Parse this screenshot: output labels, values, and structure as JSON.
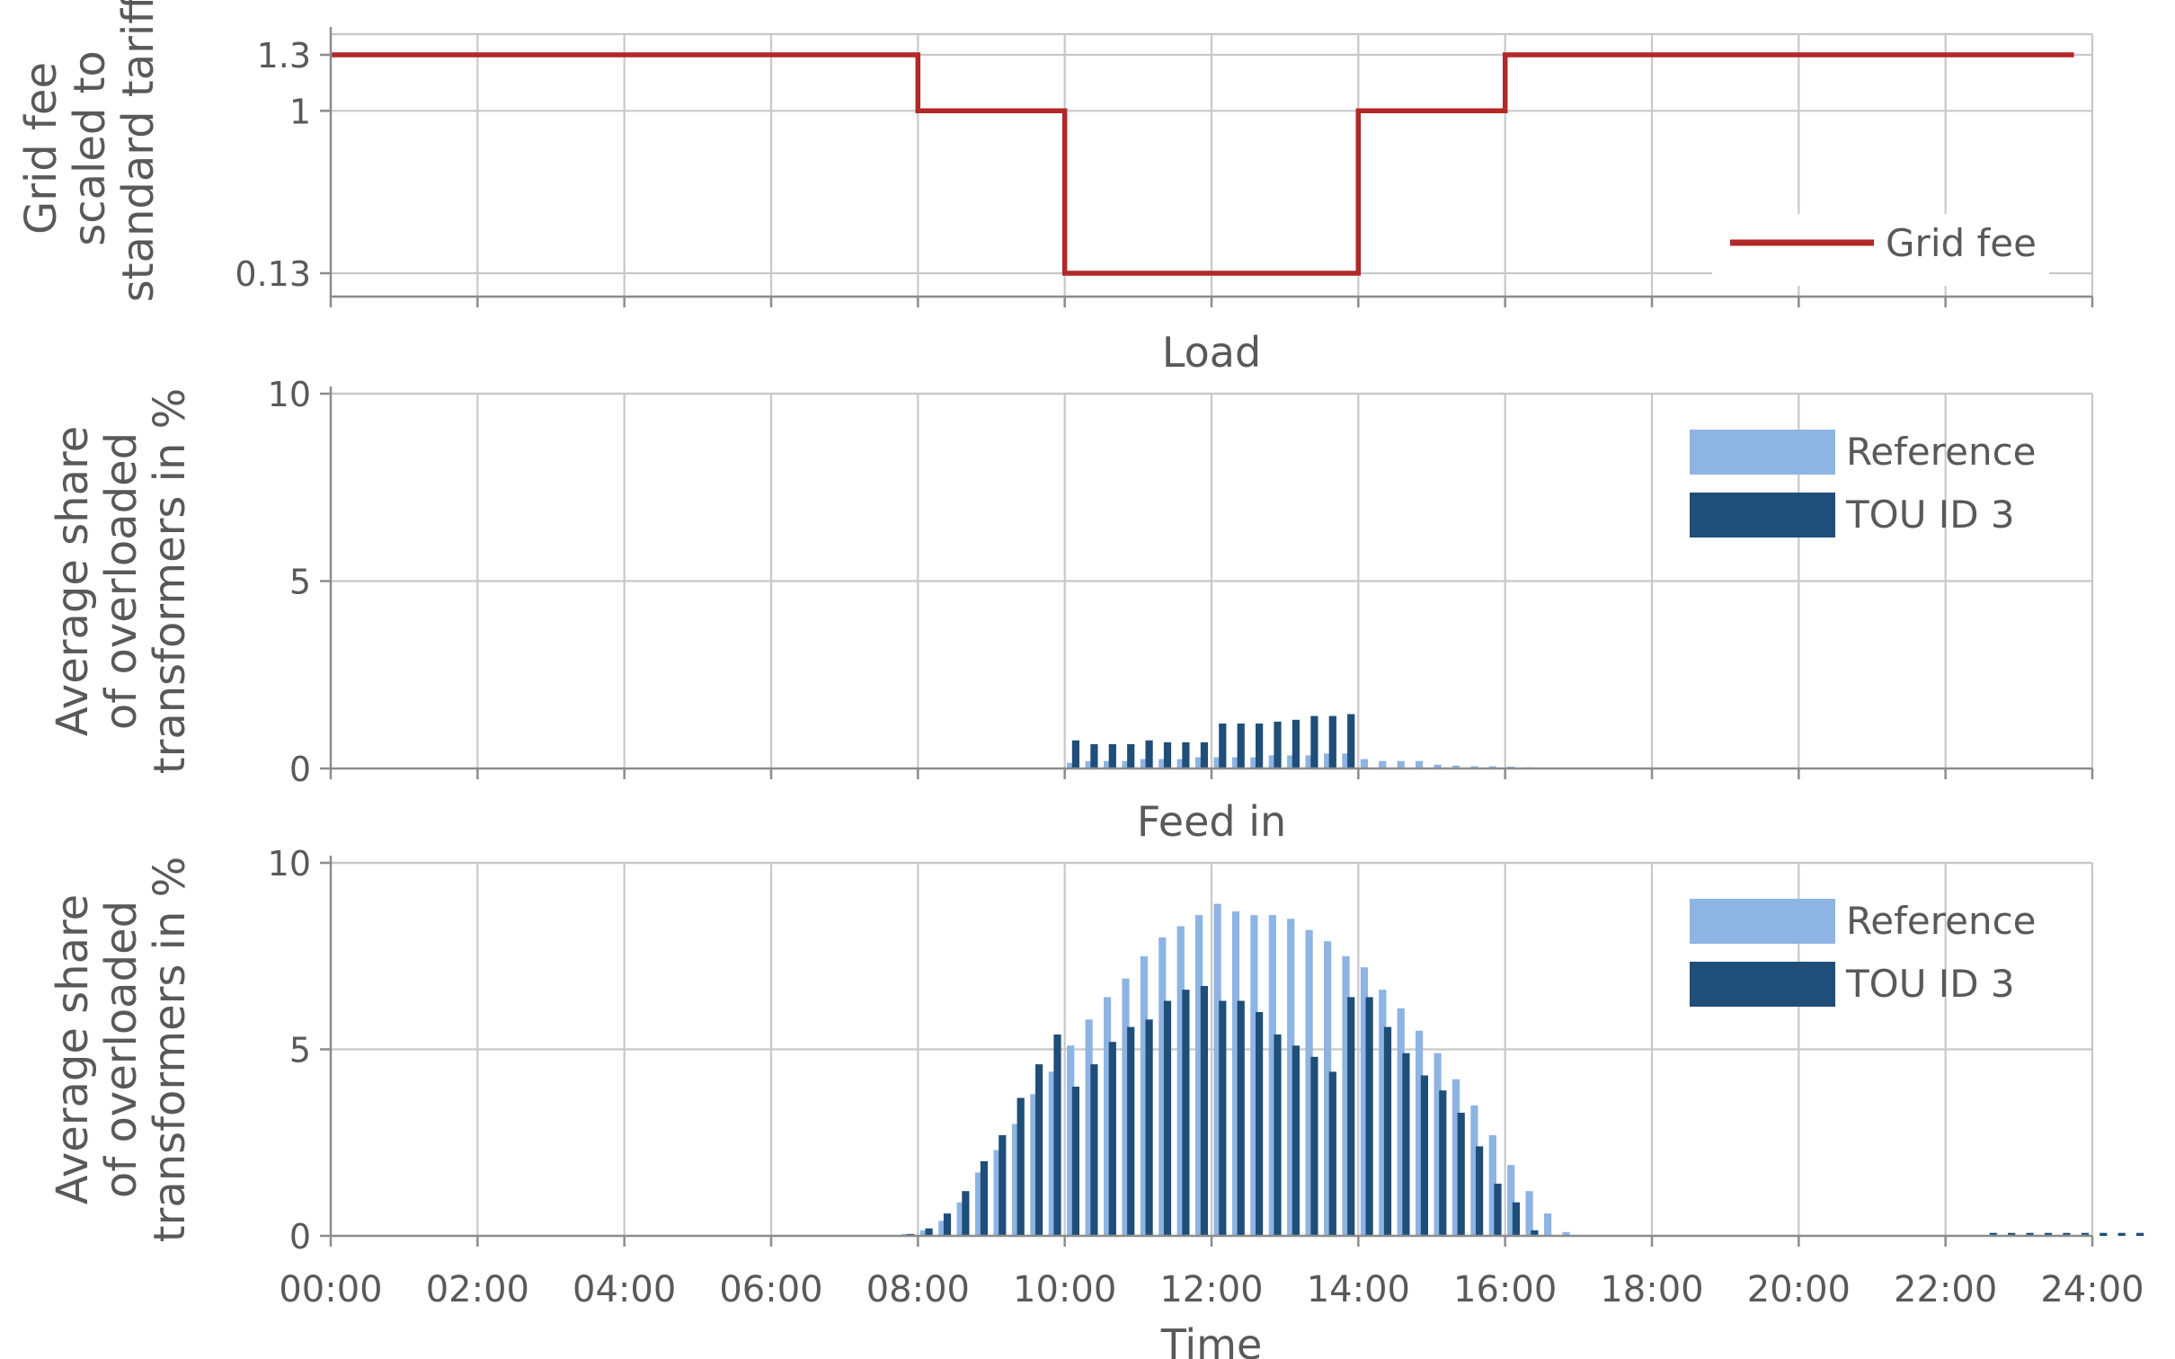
{
  "chart_data": [
    {
      "type": "line",
      "title": "",
      "ylabel": [
        "Grid fee",
        "scaled to",
        "standard tariff"
      ],
      "xlim": [
        0,
        24
      ],
      "ylim": [
        0,
        1.5
      ],
      "yticks": [
        0.13,
        1,
        1.3
      ],
      "ytick_labels": [
        "0.13",
        "1",
        "1.3"
      ],
      "grid": true,
      "legend_position": "bottom-right",
      "series": [
        {
          "name": "Grid fee",
          "color": "#b22727",
          "step": true,
          "points": [
            [
              0,
              1.3
            ],
            [
              8,
              1.3
            ],
            [
              8,
              1
            ],
            [
              10,
              1
            ],
            [
              10,
              0.13
            ],
            [
              14,
              0.13
            ],
            [
              14,
              1
            ],
            [
              16,
              1
            ],
            [
              16,
              1.3
            ],
            [
              23.75,
              1.3
            ]
          ]
        }
      ]
    },
    {
      "type": "bar",
      "title": "Load",
      "ylabel": [
        "Average share",
        "of overloaded",
        "transformers in %"
      ],
      "xlim": [
        0,
        24
      ],
      "ylim": [
        0,
        10
      ],
      "yticks": [
        0,
        5,
        10
      ],
      "ytick_labels": [
        "0",
        "5",
        "10"
      ],
      "grid": true,
      "legend_position": "top-right",
      "bin_hours": 0.25,
      "series": [
        {
          "name": "Reference",
          "color": "#8db4e2",
          "start_hour": 10,
          "values": [
            0.15,
            0.2,
            0.2,
            0.2,
            0.25,
            0.25,
            0.25,
            0.3,
            0.3,
            0.3,
            0.3,
            0.35,
            0.35,
            0.35,
            0.4,
            0.4,
            0.25,
            0.2,
            0.2,
            0.2,
            0.1,
            0.08,
            0.06,
            0.06,
            0.05,
            0.03,
            0.02,
            0.02,
            0.02,
            0.02,
            0,
            0,
            0,
            0,
            0,
            0,
            0,
            0,
            0,
            0,
            0,
            0,
            0,
            0,
            0,
            0,
            0,
            0,
            0,
            0,
            0,
            0,
            0,
            0,
            0,
            0
          ]
        },
        {
          "name": "TOU ID 3",
          "color": "#1f4e79",
          "start_hour": 10,
          "values": [
            0.75,
            0.65,
            0.65,
            0.65,
            0.75,
            0.7,
            0.7,
            0.7,
            1.2,
            1.2,
            1.2,
            1.25,
            1.3,
            1.4,
            1.4,
            1.45,
            0,
            0,
            0,
            0,
            0,
            0,
            0,
            0,
            0,
            0,
            0,
            0,
            0,
            0,
            0,
            0,
            0,
            0,
            0,
            0,
            0,
            0,
            0,
            0,
            0,
            0,
            0,
            0,
            0,
            0,
            0,
            0,
            0,
            0,
            0,
            0,
            0,
            0,
            0,
            0
          ]
        }
      ]
    },
    {
      "type": "bar",
      "title": "Feed in",
      "xlabel": "Time",
      "ylabel": [
        "Average share",
        "of overloaded",
        "transformers in %"
      ],
      "xlim": [
        0,
        24
      ],
      "ylim": [
        0,
        10
      ],
      "yticks": [
        0,
        5,
        10
      ],
      "ytick_labels": [
        "0",
        "5",
        "10"
      ],
      "xticks": [
        0,
        2,
        4,
        6,
        8,
        10,
        12,
        14,
        16,
        18,
        20,
        22,
        24
      ],
      "xtick_labels": [
        "00:00",
        "02:00",
        "04:00",
        "06:00",
        "08:00",
        "10:00",
        "12:00",
        "14:00",
        "16:00",
        "18:00",
        "20:00",
        "22:00",
        "24:00"
      ],
      "grid": true,
      "legend_position": "top-right",
      "bin_hours": 0.25,
      "series": [
        {
          "name": "Reference",
          "color": "#8db4e2",
          "start_hour": 7.75,
          "values": [
            0.05,
            0.15,
            0.4,
            0.9,
            1.7,
            2.3,
            3,
            3.8,
            4.4,
            5.1,
            5.8,
            6.4,
            6.9,
            7.5,
            8,
            8.3,
            8.6,
            8.9,
            8.7,
            8.6,
            8.6,
            8.5,
            8.2,
            7.9,
            7.5,
            7.2,
            6.6,
            6.1,
            5.5,
            4.9,
            4.2,
            3.5,
            2.7,
            1.9,
            1.2,
            0.6,
            0.1,
            0,
            0,
            0,
            0,
            0,
            0,
            0,
            0,
            0,
            0,
            0,
            0,
            0,
            0,
            0,
            0,
            0,
            0,
            0,
            0,
            0,
            0,
            0,
            0,
            0,
            0,
            0,
            0,
            0,
            0,
            0,
            0,
            0,
            0,
            0,
            0,
            0,
            0,
            0,
            0,
            0,
            0,
            0,
            0,
            0,
            0,
            0,
            0,
            0,
            0,
            0,
            0,
            0,
            0,
            0,
            0,
            0,
            0,
            0
          ]
        },
        {
          "name": "TOU ID 3",
          "color": "#1f4e79",
          "start_hour": 7.75,
          "values": [
            0.05,
            0.2,
            0.6,
            1.2,
            2,
            2.7,
            3.7,
            4.6,
            5.4,
            4,
            4.6,
            5.2,
            5.6,
            5.8,
            6.3,
            6.6,
            6.7,
            6.3,
            6.3,
            6,
            5.4,
            5.1,
            4.8,
            4.4,
            6.4,
            6.4,
            5.6,
            4.9,
            4.3,
            3.9,
            3.3,
            2.4,
            1.4,
            0.9,
            0.15,
            0,
            0,
            0,
            0,
            0,
            0,
            0,
            0,
            0,
            0,
            0,
            0,
            0,
            0,
            0,
            0,
            0,
            0,
            0,
            0,
            0,
            0,
            0,
            0,
            0.08,
            0.08,
            0.08,
            0.08,
            0.08,
            0.08,
            0.08,
            0.08,
            0.08,
            0,
            0,
            0,
            0,
            0,
            0,
            0,
            0,
            0,
            0,
            0,
            0,
            0,
            0,
            0,
            0,
            0,
            0,
            0,
            0,
            0,
            0,
            0,
            0,
            0,
            0,
            0
          ]
        }
      ]
    }
  ]
}
